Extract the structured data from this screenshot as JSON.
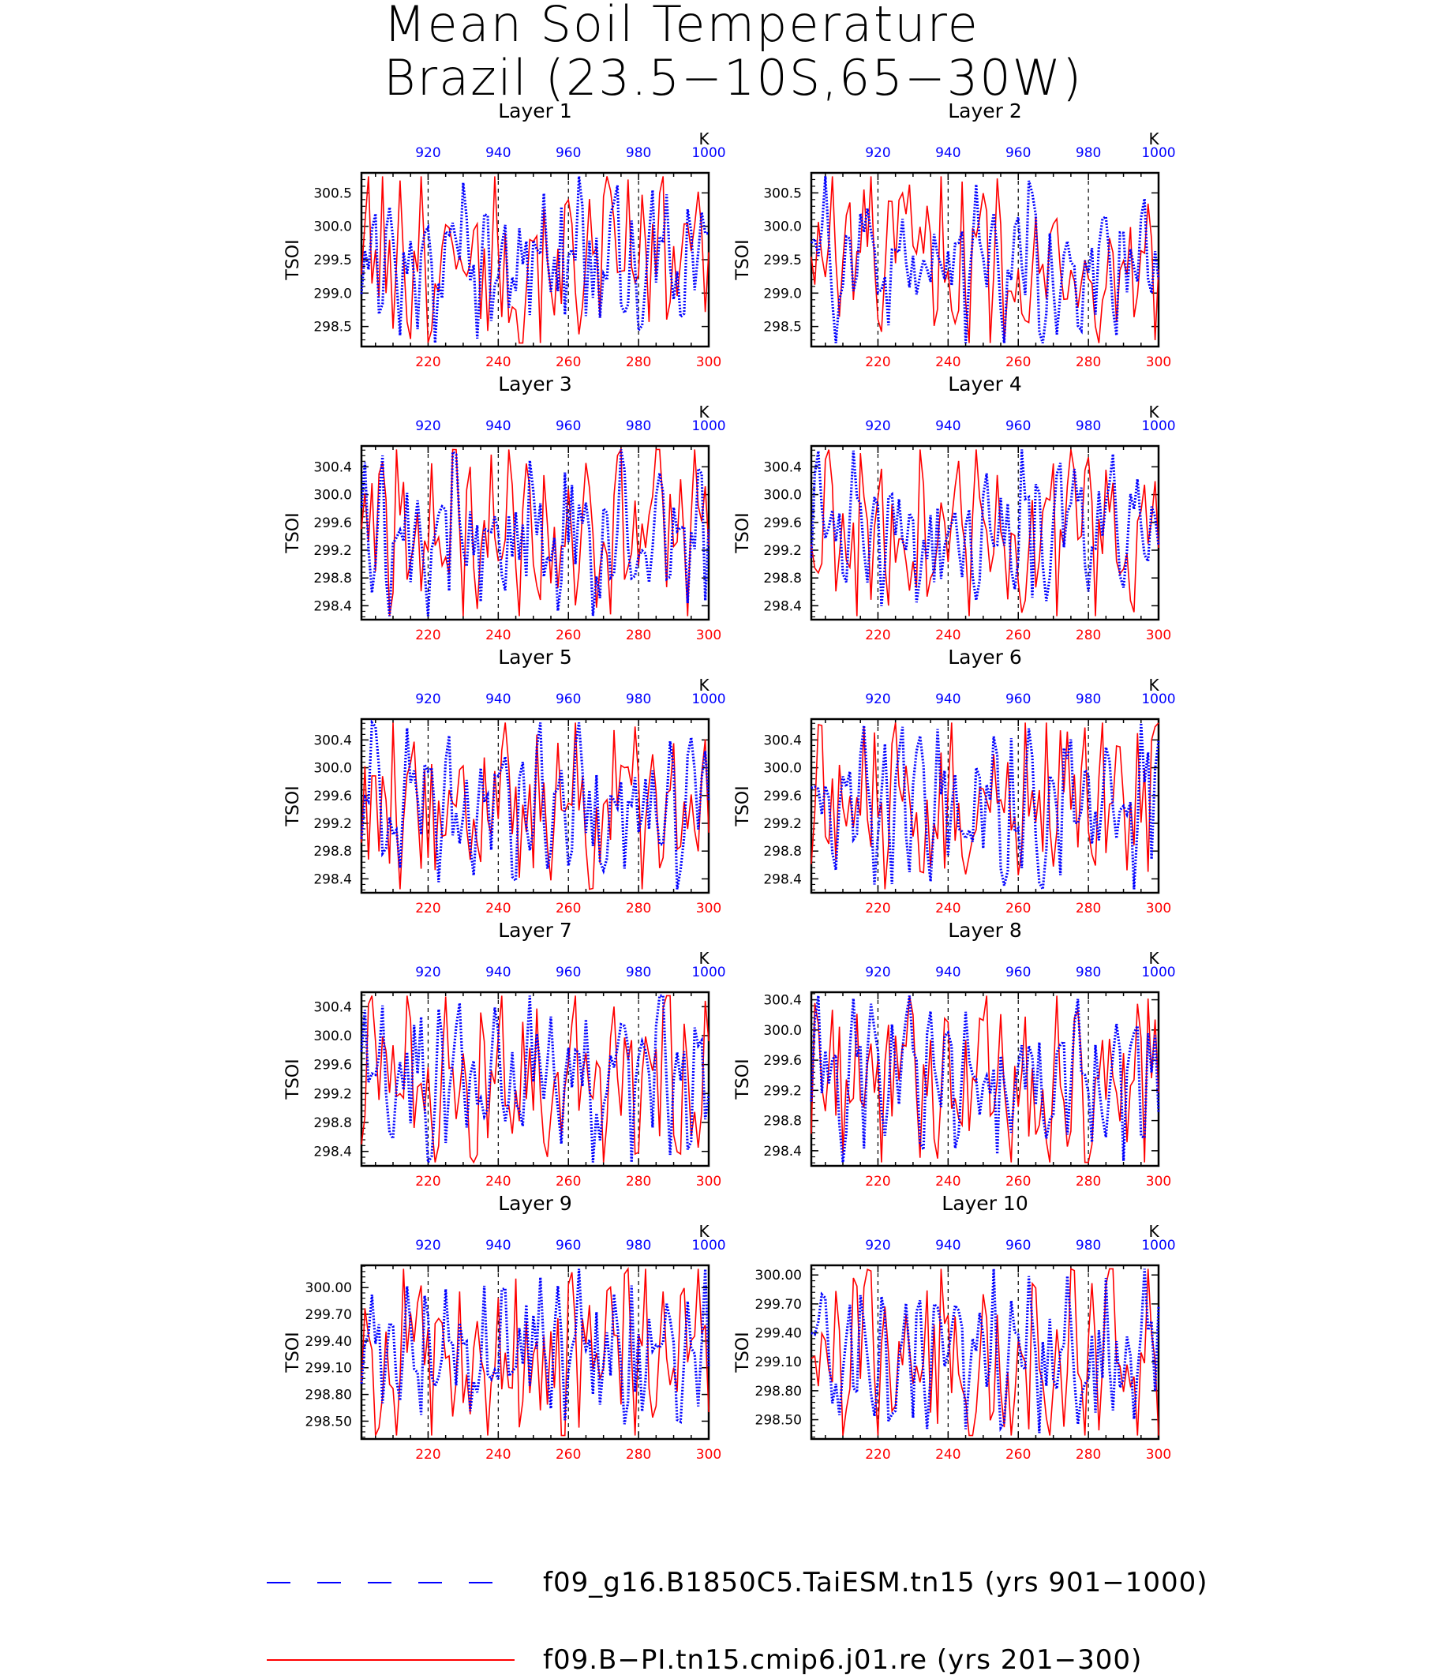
{
  "figure": {
    "title_line1": "Mean Soil Temperature",
    "title_line2": "Brazil (23.5−10S,65−30W)"
  },
  "colors": {
    "series_blue": "#0000ff",
    "series_red": "#ff0000",
    "frame": "#000000"
  },
  "legend": {
    "entries": [
      {
        "label": "f09_g16.B1850C5.TaiESM.tn15 (yrs 901−1000)",
        "color": "#0000ff",
        "style": "dashed"
      },
      {
        "label": "f09.B−PI.tn15.cmip6.j01.re (yrs 201−300)",
        "color": "#ff0000",
        "style": "solid"
      }
    ]
  },
  "chart_data": [
    {
      "type": "line",
      "title": "Layer 1",
      "ylabel": "TSOI",
      "ylim": [
        298.2,
        300.8
      ],
      "yticks": [
        "298.5",
        "299.0",
        "299.5",
        "300.0",
        "300.5"
      ],
      "top_xlabel": "K",
      "top_xticks": [
        "920",
        "940",
        "960",
        "980",
        "1000"
      ],
      "bottom_xticks": [
        "220",
        "240",
        "260",
        "280",
        "300"
      ],
      "grid": "vertical dashed at 220, 240, 260, 280"
    },
    {
      "type": "line",
      "title": "Layer 2",
      "ylabel": "TSOI",
      "ylim": [
        298.2,
        300.8
      ],
      "yticks": [
        "298.5",
        "299.0",
        "299.5",
        "300.0",
        "300.5"
      ],
      "top_xlabel": "K",
      "top_xticks": [
        "920",
        "940",
        "960",
        "980",
        "1000"
      ],
      "bottom_xticks": [
        "220",
        "240",
        "260",
        "280",
        "300"
      ]
    },
    {
      "type": "line",
      "title": "Layer 3",
      "ylabel": "TSOI",
      "ylim": [
        298.2,
        300.7
      ],
      "yticks": [
        "298.4",
        "298.8",
        "299.2",
        "299.6",
        "300.0",
        "300.4"
      ],
      "top_xlabel": "K",
      "top_xticks": [
        "920",
        "940",
        "960",
        "980",
        "1000"
      ],
      "bottom_xticks": [
        "220",
        "240",
        "260",
        "280",
        "300"
      ]
    },
    {
      "type": "line",
      "title": "Layer 4",
      "ylabel": "TSOI",
      "ylim": [
        298.2,
        300.7
      ],
      "yticks": [
        "298.4",
        "298.8",
        "299.2",
        "299.6",
        "300.0",
        "300.4"
      ],
      "top_xlabel": "K",
      "top_xticks": [
        "920",
        "940",
        "960",
        "980",
        "1000"
      ],
      "bottom_xticks": [
        "220",
        "240",
        "260",
        "280",
        "300"
      ]
    },
    {
      "type": "line",
      "title": "Layer 5",
      "ylabel": "TSOI",
      "ylim": [
        298.2,
        300.7
      ],
      "yticks": [
        "298.4",
        "298.8",
        "299.2",
        "299.6",
        "300.0",
        "300.4"
      ],
      "top_xlabel": "K",
      "top_xticks": [
        "920",
        "940",
        "960",
        "980",
        "1000"
      ],
      "bottom_xticks": [
        "220",
        "240",
        "260",
        "280",
        "300"
      ]
    },
    {
      "type": "line",
      "title": "Layer 6",
      "ylabel": "TSOI",
      "ylim": [
        298.2,
        300.7
      ],
      "yticks": [
        "298.4",
        "298.8",
        "299.2",
        "299.6",
        "300.0",
        "300.4"
      ],
      "top_xlabel": "K",
      "top_xticks": [
        "920",
        "940",
        "960",
        "980",
        "1000"
      ],
      "bottom_xticks": [
        "220",
        "240",
        "260",
        "280",
        "300"
      ]
    },
    {
      "type": "line",
      "title": "Layer 7",
      "ylabel": "TSOI",
      "ylim": [
        298.2,
        300.6
      ],
      "yticks": [
        "298.4",
        "298.8",
        "299.2",
        "299.6",
        "300.0",
        "300.4"
      ],
      "top_xlabel": "K",
      "top_xticks": [
        "920",
        "940",
        "960",
        "980",
        "1000"
      ],
      "bottom_xticks": [
        "220",
        "240",
        "260",
        "280",
        "300"
      ]
    },
    {
      "type": "line",
      "title": "Layer 8",
      "ylabel": "TSOI",
      "ylim": [
        298.2,
        300.5
      ],
      "yticks": [
        "298.4",
        "298.8",
        "299.2",
        "299.6",
        "300.0",
        "300.4"
      ],
      "top_xlabel": "K",
      "top_xticks": [
        "920",
        "940",
        "960",
        "980",
        "1000"
      ],
      "bottom_xticks": [
        "220",
        "240",
        "260",
        "280",
        "300"
      ]
    },
    {
      "type": "line",
      "title": "Layer 9",
      "ylabel": "TSOI",
      "ylim": [
        298.3,
        300.25
      ],
      "yticks": [
        "298.50",
        "298.80",
        "299.10",
        "299.40",
        "299.70",
        "300.00"
      ],
      "top_xlabel": "K",
      "top_xticks": [
        "920",
        "940",
        "960",
        "980",
        "1000"
      ],
      "bottom_xticks": [
        "220",
        "240",
        "260",
        "280",
        "300"
      ]
    },
    {
      "type": "line",
      "title": "Layer 10",
      "ylabel": "TSOI",
      "ylim": [
        298.3,
        300.1
      ],
      "yticks": [
        "298.50",
        "298.80",
        "299.10",
        "299.40",
        "299.70",
        "300.00"
      ],
      "top_xlabel": "K",
      "top_xticks": [
        "920",
        "940",
        "960",
        "980",
        "1000"
      ],
      "bottom_xticks": [
        "220",
        "240",
        "260",
        "280",
        "300"
      ]
    }
  ]
}
